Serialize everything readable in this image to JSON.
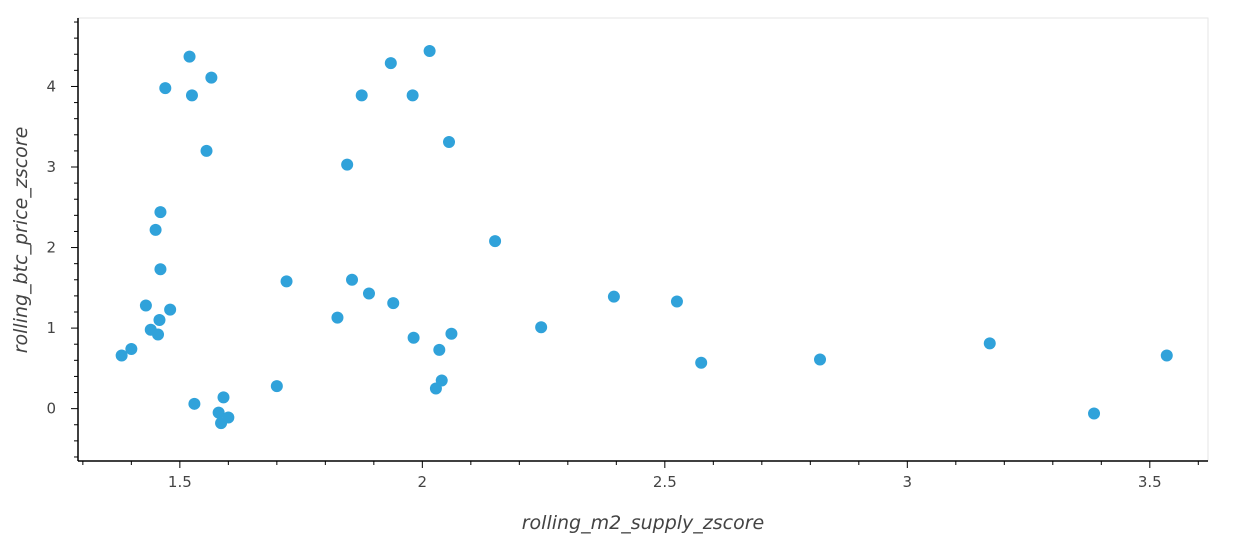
{
  "chart_data": {
    "type": "scatter",
    "title": "",
    "xlabel": "rolling_m2_supply_zscore",
    "ylabel": "rolling_btc_price_zscore",
    "xlim": [
      1.29,
      3.62
    ],
    "ylim": [
      -0.65,
      4.85
    ],
    "x_ticks": [
      1.5,
      2,
      2.5,
      3,
      3.5
    ],
    "x_tick_labels": [
      "1.5",
      "2",
      "2.5",
      "3",
      "3.5"
    ],
    "y_ticks": [
      0,
      1,
      2,
      3,
      4
    ],
    "y_tick_labels": [
      "0",
      "1",
      "2",
      "3",
      "4"
    ],
    "grid": false,
    "marker_color": "#30a2da",
    "points": [
      {
        "x": 1.38,
        "y": 0.66
      },
      {
        "x": 1.4,
        "y": 0.74
      },
      {
        "x": 1.43,
        "y": 1.28
      },
      {
        "x": 1.44,
        "y": 0.98
      },
      {
        "x": 1.45,
        "y": 2.22
      },
      {
        "x": 1.455,
        "y": 0.92
      },
      {
        "x": 1.458,
        "y": 1.1
      },
      {
        "x": 1.46,
        "y": 1.73
      },
      {
        "x": 1.46,
        "y": 2.44
      },
      {
        "x": 1.47,
        "y": 3.98
      },
      {
        "x": 1.48,
        "y": 1.23
      },
      {
        "x": 1.52,
        "y": 4.37
      },
      {
        "x": 1.525,
        "y": 3.89
      },
      {
        "x": 1.53,
        "y": 0.06
      },
      {
        "x": 1.555,
        "y": 3.2
      },
      {
        "x": 1.565,
        "y": 4.11
      },
      {
        "x": 1.58,
        "y": -0.05
      },
      {
        "x": 1.585,
        "y": -0.18
      },
      {
        "x": 1.59,
        "y": 0.14
      },
      {
        "x": 1.6,
        "y": -0.11
      },
      {
        "x": 1.7,
        "y": 0.28
      },
      {
        "x": 1.72,
        "y": 1.58
      },
      {
        "x": 1.825,
        "y": 1.13
      },
      {
        "x": 1.845,
        "y": 3.03
      },
      {
        "x": 1.855,
        "y": 1.6
      },
      {
        "x": 1.875,
        "y": 3.89
      },
      {
        "x": 1.89,
        "y": 1.43
      },
      {
        "x": 1.935,
        "y": 4.29
      },
      {
        "x": 1.94,
        "y": 1.31
      },
      {
        "x": 1.98,
        "y": 3.89
      },
      {
        "x": 1.982,
        "y": 0.88
      },
      {
        "x": 2.015,
        "y": 4.44
      },
      {
        "x": 2.028,
        "y": 0.25
      },
      {
        "x": 2.035,
        "y": 0.73
      },
      {
        "x": 2.04,
        "y": 0.35
      },
      {
        "x": 2.055,
        "y": 3.31
      },
      {
        "x": 2.06,
        "y": 0.93
      },
      {
        "x": 2.15,
        "y": 2.08
      },
      {
        "x": 2.245,
        "y": 1.01
      },
      {
        "x": 2.395,
        "y": 1.39
      },
      {
        "x": 2.525,
        "y": 1.33
      },
      {
        "x": 2.575,
        "y": 0.57
      },
      {
        "x": 2.82,
        "y": 0.61
      },
      {
        "x": 3.17,
        "y": 0.81
      },
      {
        "x": 3.385,
        "y": -0.06
      },
      {
        "x": 3.535,
        "y": 0.66
      }
    ]
  }
}
